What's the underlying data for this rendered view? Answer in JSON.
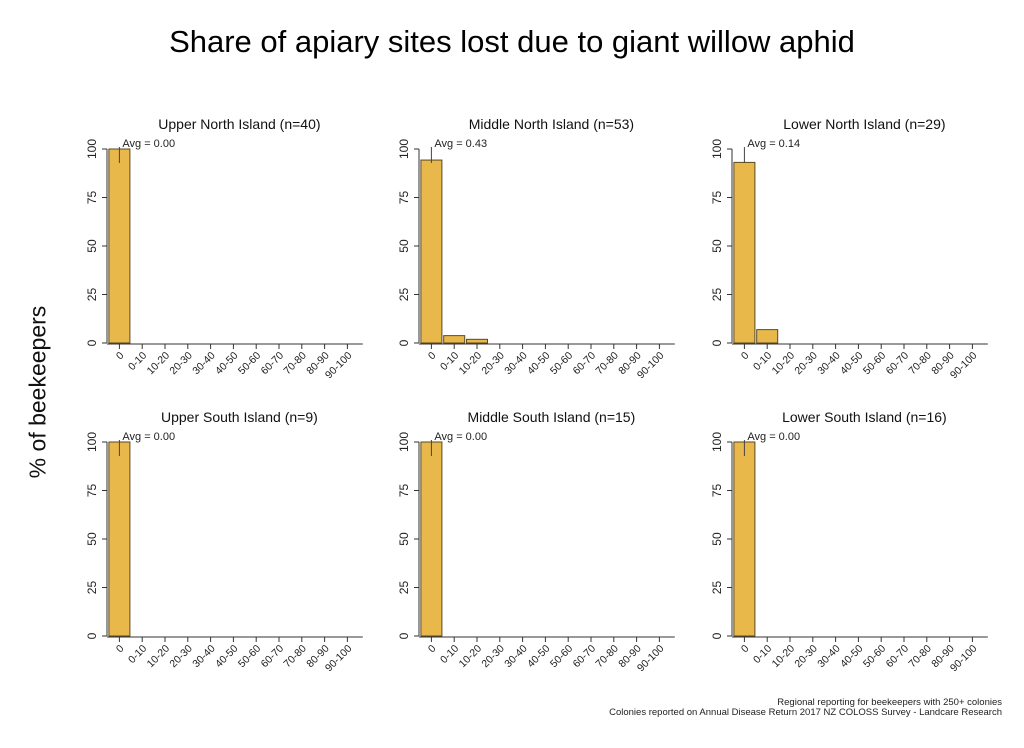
{
  "title": "Share of apiary sites lost due to giant willow aphid",
  "ylabel": "% of beekeepers",
  "footnote": {
    "line1": "Regional reporting for beekeepers with 250+ colonies",
    "line2": "Colonies reported on Annual Disease Return 2017 NZ COLOSS Survey - Landcare Research"
  },
  "colors": {
    "bar": "#E8B84B",
    "bar_stroke": "#5a4a25",
    "axis": "#333333"
  },
  "chart_data": [
    {
      "type": "bar",
      "title": "Upper North Island (n=40)",
      "avg_label": "Avg = 0.00",
      "categories": [
        "0",
        "0-10",
        "10-20",
        "20-30",
        "30-40",
        "40-50",
        "50-60",
        "60-70",
        "70-80",
        "80-90",
        "90-100"
      ],
      "values": [
        100,
        0,
        0,
        0,
        0,
        0,
        0,
        0,
        0,
        0,
        0
      ],
      "yticks": [
        0,
        25,
        50,
        75,
        100
      ],
      "ylim": [
        0,
        100
      ]
    },
    {
      "type": "bar",
      "title": "Middle North Island (n=53)",
      "avg_label": "Avg = 0.43",
      "categories": [
        "0",
        "0-10",
        "10-20",
        "20-30",
        "30-40",
        "40-50",
        "50-60",
        "60-70",
        "70-80",
        "80-90",
        "90-100"
      ],
      "values": [
        94.3,
        3.8,
        1.9,
        0,
        0,
        0,
        0,
        0,
        0,
        0,
        0
      ],
      "yticks": [
        0,
        25,
        50,
        75,
        100
      ],
      "ylim": [
        0,
        100
      ]
    },
    {
      "type": "bar",
      "title": "Lower North Island (n=29)",
      "avg_label": "Avg = 0.14",
      "categories": [
        "0",
        "0-10",
        "10-20",
        "20-30",
        "30-40",
        "40-50",
        "50-60",
        "60-70",
        "70-80",
        "80-90",
        "90-100"
      ],
      "values": [
        93.1,
        6.9,
        0,
        0,
        0,
        0,
        0,
        0,
        0,
        0,
        0
      ],
      "yticks": [
        0,
        25,
        50,
        75,
        100
      ],
      "ylim": [
        0,
        100
      ]
    },
    {
      "type": "bar",
      "title": "Upper South Island (n=9)",
      "avg_label": "Avg = 0.00",
      "categories": [
        "0",
        "0-10",
        "10-20",
        "20-30",
        "30-40",
        "40-50",
        "50-60",
        "60-70",
        "70-80",
        "80-90",
        "90-100"
      ],
      "values": [
        100,
        0,
        0,
        0,
        0,
        0,
        0,
        0,
        0,
        0,
        0
      ],
      "yticks": [
        0,
        25,
        50,
        75,
        100
      ],
      "ylim": [
        0,
        100
      ]
    },
    {
      "type": "bar",
      "title": "Middle South Island (n=15)",
      "avg_label": "Avg = 0.00",
      "categories": [
        "0",
        "0-10",
        "10-20",
        "20-30",
        "30-40",
        "40-50",
        "50-60",
        "60-70",
        "70-80",
        "80-90",
        "90-100"
      ],
      "values": [
        100,
        0,
        0,
        0,
        0,
        0,
        0,
        0,
        0,
        0,
        0
      ],
      "yticks": [
        0,
        25,
        50,
        75,
        100
      ],
      "ylim": [
        0,
        100
      ]
    },
    {
      "type": "bar",
      "title": "Lower South Island (n=16)",
      "avg_label": "Avg = 0.00",
      "categories": [
        "0",
        "0-10",
        "10-20",
        "20-30",
        "30-40",
        "40-50",
        "50-60",
        "60-70",
        "70-80",
        "80-90",
        "90-100"
      ],
      "values": [
        100,
        0,
        0,
        0,
        0,
        0,
        0,
        0,
        0,
        0,
        0
      ],
      "yticks": [
        0,
        25,
        50,
        75,
        100
      ],
      "ylim": [
        0,
        100
      ]
    }
  ]
}
